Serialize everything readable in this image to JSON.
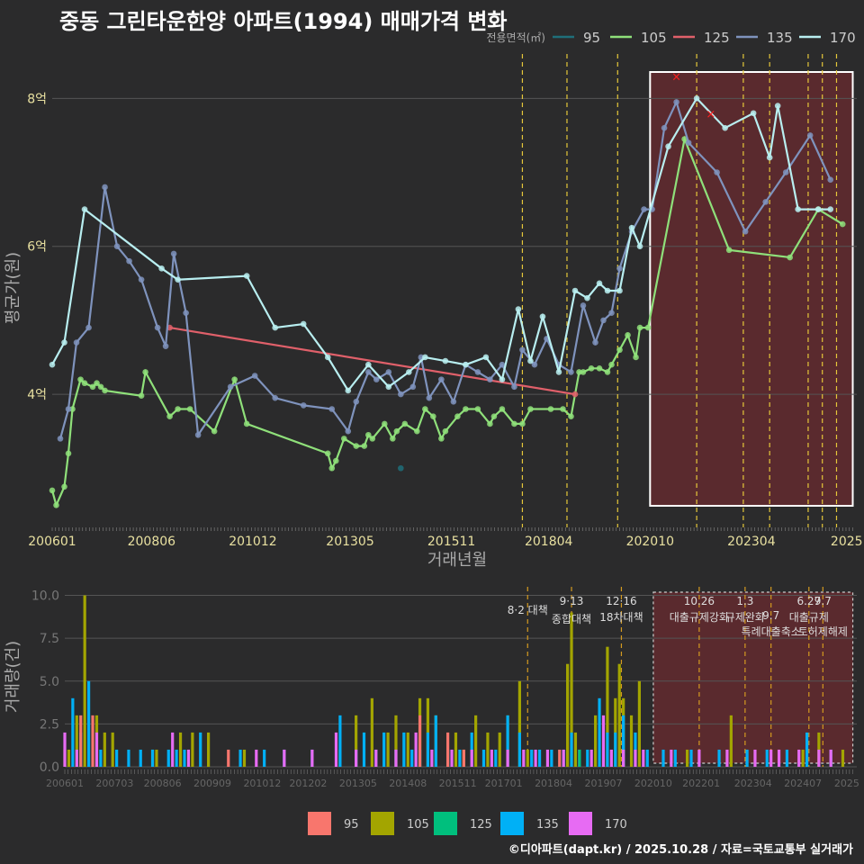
{
  "title": "중동 그린타운한양 아파트(1994) 매매가격 변화",
  "credit": "©디아파트(dapt.kr) / 2025.10.28 / 자료=국토교통부 실거래가",
  "colors": {
    "background": "#2b2b2c",
    "grid": "#555555",
    "s95": "#1f6f7a",
    "s105": "#8fe07a",
    "s125": "#e0606a",
    "s135": "#7f93bd",
    "s170": "#b8eef0",
    "b95": "#f8766d",
    "b105": "#a3a500",
    "b125": "#00bf7d",
    "b135": "#00b0f6",
    "b170": "#e76bf3",
    "policy_line": "#e5c73a",
    "highlight_fill": "#5a2a2e"
  },
  "chart_data": [
    {
      "type": "line",
      "title": "중동 그린타운한양 아파트(1994) 매매가격 변화",
      "xlabel": "거래년월",
      "ylabel": "평균가(원)",
      "legend_title": "전용면적(㎡)",
      "legend_position": "top-right",
      "x_tick_labels": [
        "200601",
        "200806",
        "201012",
        "201305",
        "201511",
        "201804",
        "202010",
        "202304",
        "2025"
      ],
      "y_ticks": [
        4,
        6,
        8
      ],
      "y_tick_labels": [
        "4억",
        "6억",
        "8억"
      ],
      "ylim": [
        2.2,
        8.6
      ],
      "xlim": [
        2006.0,
        2025.85
      ],
      "highlight_range": [
        2020.75,
        2025.75
      ],
      "policy_lines": [
        2017.6,
        2018.7,
        2019.95,
        2021.9,
        2023.05,
        2023.7,
        2024.65,
        2025.0,
        2025.35
      ],
      "series": [
        {
          "name": "95",
          "x": [
            2014.6
          ],
          "y": [
            3.0
          ]
        },
        {
          "name": "105",
          "x": [
            2006.0,
            2006.1,
            2006.3,
            2006.4,
            2006.5,
            2006.7,
            2006.8,
            2007.0,
            2007.1,
            2007.2,
            2007.3,
            2008.2,
            2008.3,
            2008.9,
            2009.1,
            2009.4,
            2010.0,
            2010.5,
            2010.8,
            2012.8,
            2012.9,
            2013.0,
            2013.2,
            2013.5,
            2013.7,
            2013.8,
            2013.9,
            2014.2,
            2014.4,
            2014.5,
            2014.7,
            2015.0,
            2015.2,
            2015.4,
            2015.6,
            2015.7,
            2016.0,
            2016.2,
            2016.5,
            2016.8,
            2016.9,
            2017.1,
            2017.4,
            2017.6,
            2017.8,
            2018.3,
            2018.6,
            2018.8,
            2019.0,
            2019.1,
            2019.3,
            2019.5,
            2019.7,
            2019.8,
            2020.0,
            2020.2,
            2020.4,
            2020.5,
            2020.7,
            2021.6,
            2022.7,
            2024.2,
            2024.9,
            2025.5
          ],
          "y": [
            2.7,
            2.5,
            2.75,
            3.2,
            3.8,
            4.2,
            4.15,
            4.1,
            4.15,
            4.1,
            4.05,
            3.98,
            4.3,
            3.7,
            3.8,
            3.8,
            3.5,
            4.2,
            3.6,
            3.2,
            3.0,
            3.1,
            3.4,
            3.3,
            3.3,
            3.45,
            3.4,
            3.6,
            3.4,
            3.5,
            3.6,
            3.5,
            3.8,
            3.7,
            3.4,
            3.5,
            3.7,
            3.8,
            3.8,
            3.6,
            3.7,
            3.8,
            3.6,
            3.6,
            3.8,
            3.8,
            3.8,
            3.7,
            4.3,
            4.3,
            4.35,
            4.35,
            4.3,
            4.4,
            4.6,
            4.8,
            4.5,
            4.9,
            4.9,
            7.45,
            5.95,
            5.85,
            6.5,
            6.3
          ]
        },
        {
          "name": "125",
          "x": [
            2008.9,
            2018.9
          ],
          "y": [
            4.9,
            4.0
          ]
        },
        {
          "name": "135",
          "x": [
            2006.2,
            2006.4,
            2006.6,
            2006.9,
            2007.3,
            2007.6,
            2007.9,
            2008.2,
            2008.6,
            2008.8,
            2009.0,
            2009.3,
            2009.6,
            2010.4,
            2011.0,
            2011.5,
            2012.2,
            2012.9,
            2013.3,
            2013.5,
            2013.8,
            2014.0,
            2014.3,
            2014.6,
            2014.9,
            2015.1,
            2015.3,
            2015.6,
            2015.9,
            2016.2,
            2016.5,
            2016.8,
            2017.1,
            2017.4,
            2017.6,
            2017.9,
            2018.2,
            2018.5,
            2018.8,
            2019.1,
            2019.4,
            2019.6,
            2019.8,
            2020.0,
            2020.3,
            2020.6,
            2020.8,
            2021.1,
            2021.4,
            2021.7,
            2022.4,
            2023.1,
            2023.6,
            2024.1,
            2024.7,
            2025.2
          ],
          "y": [
            3.4,
            3.8,
            4.7,
            4.9,
            6.8,
            6.0,
            5.8,
            5.55,
            4.9,
            4.65,
            5.9,
            5.1,
            3.45,
            4.1,
            4.25,
            3.95,
            3.85,
            3.8,
            3.5,
            3.9,
            4.3,
            4.2,
            4.3,
            4.0,
            4.1,
            4.5,
            3.95,
            4.2,
            3.9,
            4.4,
            4.3,
            4.2,
            4.4,
            4.1,
            4.6,
            4.4,
            4.75,
            4.4,
            4.3,
            5.2,
            4.7,
            5.0,
            5.1,
            5.7,
            6.2,
            6.5,
            6.5,
            7.6,
            7.95,
            7.4,
            7.0,
            6.2,
            6.6,
            7.0,
            7.5,
            6.9
          ]
        },
        {
          "name": "170",
          "x": [
            2006.0,
            2006.3,
            2006.8,
            2008.7,
            2009.1,
            2010.8,
            2011.5,
            2012.2,
            2012.8,
            2013.3,
            2013.8,
            2014.3,
            2014.8,
            2015.2,
            2015.7,
            2016.2,
            2016.7,
            2017.1,
            2017.5,
            2017.8,
            2018.1,
            2018.5,
            2018.9,
            2019.2,
            2019.5,
            2019.7,
            2020.0,
            2020.3,
            2020.5,
            2021.2,
            2021.9,
            2022.6,
            2023.3,
            2023.7,
            2023.9,
            2024.4,
            2024.9,
            2025.2
          ],
          "y": [
            4.4,
            4.7,
            6.5,
            5.7,
            5.55,
            5.6,
            4.9,
            4.95,
            4.5,
            4.05,
            4.4,
            4.1,
            4.3,
            4.5,
            4.45,
            4.4,
            4.5,
            4.2,
            5.15,
            4.45,
            5.05,
            4.3,
            5.4,
            5.3,
            5.5,
            5.4,
            5.4,
            6.25,
            6.0,
            7.35,
            8.0,
            7.6,
            7.8,
            7.2,
            7.9,
            6.5,
            6.5,
            6.5
          ]
        }
      ],
      "x_markers": [
        {
          "x": 2021.4,
          "y": 8.3
        },
        {
          "x": 2022.25,
          "y": 7.8
        }
      ]
    },
    {
      "type": "bar",
      "ylabel": "거래량(건)",
      "y_ticks": [
        0.0,
        2.5,
        5.0,
        7.5,
        10.0
      ],
      "y_tick_labels": [
        "0.0",
        "2.5",
        "5.0",
        "7.5",
        "10.0"
      ],
      "ylim": [
        0,
        10.5
      ],
      "x_tick_labels": [
        "200601",
        "200703",
        "200806",
        "200909",
        "201012",
        "201202",
        "201305",
        "201408",
        "201511",
        "201701",
        "201804",
        "201907",
        "202010",
        "202201",
        "202304",
        "202407",
        "2025"
      ],
      "legend_position": "bottom",
      "legend_entries": [
        "95",
        "105",
        "125",
        "135",
        "170"
      ],
      "annotations": [
        {
          "x": 2017.6,
          "date": "8·2",
          "text": "대책"
        },
        {
          "x": 2018.7,
          "date": "9·13",
          "text": "종합대책"
        },
        {
          "x": 2019.95,
          "date": "12·16",
          "text": "18차대책"
        },
        {
          "x": 2021.9,
          "date": "10.26",
          "text": "대출규제강화"
        },
        {
          "x": 2023.05,
          "date": "1.3",
          "text": "규제완화"
        },
        {
          "x": 2023.7,
          "date": "9.7",
          "text": "특례대출축소"
        },
        {
          "x": 2024.65,
          "date": "6.27",
          "text": "대출규제"
        },
        {
          "x": 2025.0,
          "date": "9.7",
          "text": "토허제해제"
        }
      ],
      "highlight_range": [
        2020.75,
        2025.75
      ],
      "bars": {
        "95": {
          "x": [
            2006.4,
            2006.7,
            2010.1,
            2014.9,
            2015.6,
            2016.0,
            2018.4
          ],
          "values": [
            3,
            3,
            1,
            3,
            2,
            1,
            1
          ]
        },
        "105": {
          "x": [
            2006.0,
            2006.1,
            2006.3,
            2006.5,
            2006.8,
            2007.0,
            2007.2,
            2008.2,
            2008.3,
            2008.9,
            2009.2,
            2009.6,
            2010.5,
            2012.9,
            2013.3,
            2013.7,
            2014.1,
            2014.3,
            2014.6,
            2014.9,
            2015.1,
            2015.3,
            2015.8,
            2016.0,
            2016.3,
            2016.6,
            2016.9,
            2017.1,
            2017.4,
            2017.6,
            2018.6,
            2018.7,
            2018.8,
            2019.3,
            2019.6,
            2019.8,
            2019.9,
            2020.0,
            2020.2,
            2020.4,
            2021.6,
            2022.7,
            2024.5,
            2024.9,
            2025.5
          ],
          "values": [
            1,
            1,
            3,
            10,
            3,
            2,
            2,
            1,
            1,
            2,
            2,
            2,
            1,
            1,
            3,
            4,
            2,
            3,
            2,
            4,
            4,
            3,
            2,
            1,
            3,
            2,
            2,
            3,
            5,
            1,
            6,
            9,
            2,
            3,
            7,
            4,
            6,
            4,
            3,
            5,
            1,
            3,
            1,
            2,
            1
          ]
        },
        "125": {
          "x": [
            2018.9
          ],
          "values": [
            1
          ]
        },
        "135": {
          "x": [
            2006.2,
            2006.4,
            2006.6,
            2006.9,
            2007.3,
            2007.6,
            2007.9,
            2008.2,
            2008.6,
            2008.8,
            2009.0,
            2009.4,
            2010.4,
            2011.0,
            2011.5,
            2012.2,
            2012.9,
            2013.3,
            2013.5,
            2013.8,
            2014.0,
            2014.3,
            2014.5,
            2014.7,
            2014.9,
            2015.1,
            2015.3,
            2015.6,
            2015.9,
            2016.2,
            2016.5,
            2016.8,
            2017.1,
            2017.4,
            2017.7,
            2017.9,
            2018.2,
            2018.5,
            2018.7,
            2019.1,
            2019.4,
            2019.6,
            2019.8,
            2020.0,
            2020.3,
            2020.6,
            2021.0,
            2021.3,
            2021.7,
            2022.4,
            2023.1,
            2023.6,
            2024.1,
            2024.6,
            2025.2
          ],
          "values": [
            4,
            2,
            5,
            1,
            1,
            1,
            1,
            1,
            1,
            1,
            1,
            2,
            1,
            1,
            1,
            1,
            3,
            1,
            2,
            1,
            2,
            1,
            2,
            1,
            1,
            2,
            3,
            1,
            1,
            2,
            1,
            1,
            3,
            2,
            1,
            1,
            1,
            1,
            2,
            1,
            4,
            2,
            2,
            3,
            2,
            1,
            1,
            1,
            1,
            1,
            1,
            1,
            1,
            2,
            1
          ]
        },
        "170": {
          "x": [
            2006.0,
            2006.3,
            2006.8,
            2008.7,
            2009.1,
            2010.8,
            2011.5,
            2012.2,
            2012.8,
            2013.3,
            2013.8,
            2014.3,
            2014.8,
            2015.2,
            2015.7,
            2016.2,
            2016.7,
            2017.1,
            2017.5,
            2017.8,
            2018.1,
            2018.5,
            2018.9,
            2019.2,
            2019.5,
            2019.7,
            2020.0,
            2020.3,
            2020.5,
            2021.2,
            2021.9,
            2022.6,
            2023.3,
            2023.7,
            2023.9,
            2024.4,
            2024.9,
            2025.2
          ],
          "values": [
            2,
            1,
            2,
            2,
            1,
            1,
            1,
            1,
            2,
            1,
            1,
            1,
            2,
            1,
            1,
            1,
            1,
            1,
            1,
            1,
            1,
            1,
            1,
            1,
            3,
            1,
            1,
            1,
            1,
            1,
            1,
            1,
            1,
            1,
            1,
            1,
            1,
            1
          ]
        }
      }
    }
  ]
}
